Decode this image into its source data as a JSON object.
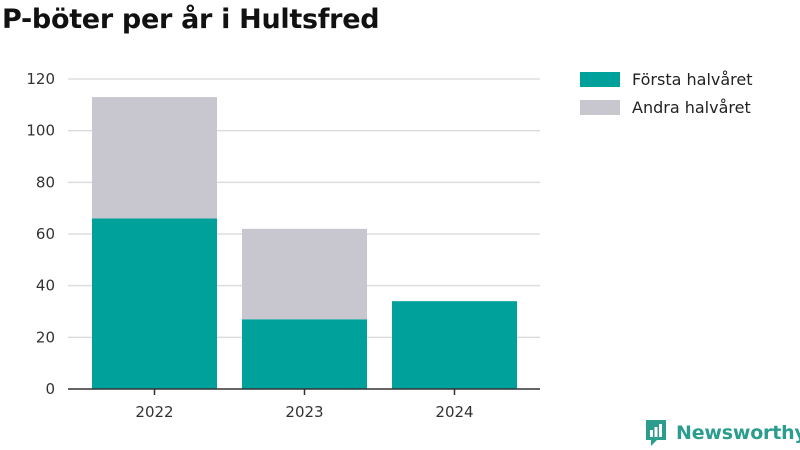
{
  "title": "P-böter per år i Hultsfred",
  "brand": {
    "name": "Newsworthy",
    "icon": "newsworthy-logo-icon"
  },
  "chart_data": {
    "type": "bar",
    "stacked": true,
    "title": "P-böter per år i Hultsfred",
    "categories": [
      "2022",
      "2023",
      "2024"
    ],
    "series": [
      {
        "name": "Första halvåret",
        "values": [
          66,
          27,
          34
        ],
        "color": "#00a19a"
      },
      {
        "name": "Andra halvåret",
        "values": [
          47,
          35,
          0
        ],
        "color": "#c8c7d0"
      }
    ],
    "ylim": [
      0,
      120
    ],
    "yticks": [
      0,
      20,
      40,
      60,
      80,
      100,
      120
    ],
    "grid": true,
    "legend": "top-right"
  }
}
